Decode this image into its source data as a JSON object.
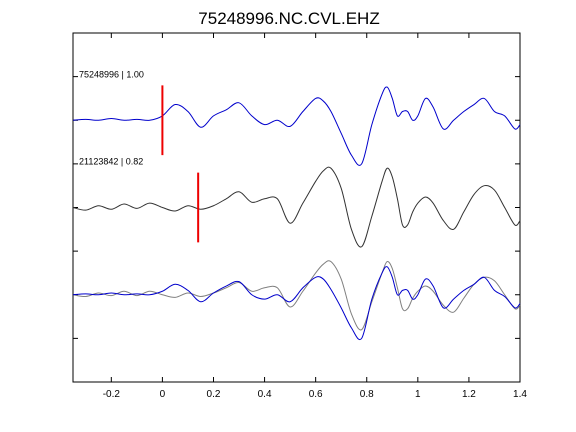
{
  "chart_data": {
    "type": "line",
    "title": "75248996.NC.CVL.EHZ",
    "xlabel": "",
    "ylabel": "",
    "xlim": [
      -0.35,
      1.4
    ],
    "x_ticks": [
      -0.2,
      0,
      0.2,
      0.4,
      0.6,
      0.8,
      1,
      1.2,
      1.4
    ],
    "x_tick_labels": [
      "-0.2",
      "0",
      "0.2",
      "0.4",
      "0.6",
      "0.8",
      "1",
      "1.2",
      "1.4"
    ],
    "y_ticks": [
      0.5,
      1,
      1.5,
      2,
      2.5,
      3,
      3.5
    ],
    "ylim": [
      0,
      4
    ],
    "grid": false,
    "colors": {
      "blue": "#0000cc",
      "dark": "#333333",
      "gray": "#808080",
      "pick": "#ee0000"
    },
    "traces": [
      {
        "label": "75248996 | 1.00",
        "baseline": 3,
        "color": "#0000cc",
        "pick_time": 0.0,
        "x": [
          -0.35,
          -0.3,
          -0.25,
          -0.2,
          -0.15,
          -0.1,
          -0.05,
          0.0,
          0.05,
          0.1,
          0.15,
          0.2,
          0.25,
          0.3,
          0.35,
          0.4,
          0.45,
          0.5,
          0.55,
          0.6,
          0.63,
          0.66,
          0.7,
          0.74,
          0.78,
          0.82,
          0.86,
          0.88,
          0.9,
          0.92,
          0.94,
          0.96,
          0.98,
          1.0,
          1.03,
          1.06,
          1.1,
          1.14,
          1.18,
          1.22,
          1.26,
          1.3,
          1.34,
          1.38,
          1.4
        ],
        "y": [
          3.0,
          3.01,
          3.0,
          3.02,
          3.0,
          3.01,
          3.0,
          3.05,
          3.18,
          3.1,
          2.92,
          3.05,
          3.12,
          3.2,
          3.05,
          2.95,
          3.0,
          2.93,
          3.1,
          3.25,
          3.22,
          3.1,
          2.85,
          2.6,
          2.5,
          2.95,
          3.3,
          3.38,
          3.25,
          3.05,
          3.1,
          3.1,
          3.0,
          3.05,
          3.25,
          3.15,
          2.9,
          3.0,
          3.1,
          3.18,
          3.25,
          3.1,
          3.05,
          2.9,
          2.95
        ]
      },
      {
        "label": "21123842 | 0.82",
        "baseline": 2,
        "color": "#333333",
        "pick_time": 0.14,
        "x": [
          -0.35,
          -0.3,
          -0.25,
          -0.2,
          -0.15,
          -0.1,
          -0.05,
          0.0,
          0.05,
          0.1,
          0.15,
          0.2,
          0.25,
          0.3,
          0.35,
          0.4,
          0.45,
          0.5,
          0.55,
          0.6,
          0.63,
          0.66,
          0.7,
          0.74,
          0.78,
          0.82,
          0.86,
          0.88,
          0.9,
          0.92,
          0.94,
          0.96,
          0.98,
          1.0,
          1.03,
          1.06,
          1.1,
          1.14,
          1.18,
          1.22,
          1.26,
          1.3,
          1.34,
          1.38,
          1.4
        ],
        "y": [
          2.0,
          1.97,
          2.02,
          1.98,
          2.04,
          1.99,
          2.05,
          2.0,
          1.96,
          2.02,
          1.98,
          2.02,
          2.1,
          2.18,
          2.06,
          2.1,
          2.1,
          1.82,
          2.05,
          2.3,
          2.42,
          2.45,
          2.22,
          1.75,
          1.55,
          1.9,
          2.3,
          2.45,
          2.35,
          2.1,
          1.8,
          1.8,
          1.95,
          2.05,
          2.12,
          2.05,
          1.85,
          1.75,
          1.95,
          2.15,
          2.25,
          2.2,
          2.0,
          1.8,
          1.85
        ]
      },
      {
        "label": "",
        "baseline": 1,
        "color": "#0000cc",
        "x": [
          -0.35,
          -0.3,
          -0.25,
          -0.2,
          -0.15,
          -0.1,
          -0.05,
          0.0,
          0.05,
          0.1,
          0.15,
          0.2,
          0.25,
          0.3,
          0.35,
          0.4,
          0.45,
          0.5,
          0.55,
          0.6,
          0.63,
          0.66,
          0.7,
          0.74,
          0.78,
          0.82,
          0.86,
          0.88,
          0.9,
          0.92,
          0.94,
          0.96,
          0.98,
          1.0,
          1.03,
          1.06,
          1.1,
          1.14,
          1.18,
          1.22,
          1.26,
          1.3,
          1.34,
          1.38,
          1.4
        ],
        "y": [
          1.0,
          1.01,
          1.0,
          1.02,
          1.0,
          1.01,
          1.0,
          1.04,
          1.12,
          1.05,
          0.92,
          1.02,
          1.1,
          1.15,
          1.0,
          0.95,
          1.0,
          0.92,
          1.08,
          1.2,
          1.18,
          1.06,
          0.85,
          0.62,
          0.5,
          0.95,
          1.25,
          1.32,
          1.2,
          1.0,
          1.05,
          1.05,
          0.95,
          1.0,
          1.18,
          1.1,
          0.85,
          0.95,
          1.05,
          1.12,
          1.2,
          1.05,
          0.98,
          0.85,
          0.9
        ]
      },
      {
        "label": "",
        "baseline": 1,
        "color": "#808080",
        "x": [
          -0.35,
          -0.3,
          -0.25,
          -0.2,
          -0.15,
          -0.1,
          -0.05,
          0.0,
          0.05,
          0.1,
          0.15,
          0.2,
          0.25,
          0.3,
          0.35,
          0.4,
          0.45,
          0.5,
          0.55,
          0.6,
          0.63,
          0.66,
          0.7,
          0.74,
          0.78,
          0.82,
          0.86,
          0.88,
          0.9,
          0.92,
          0.94,
          0.96,
          0.98,
          1.0,
          1.03,
          1.06,
          1.1,
          1.14,
          1.18,
          1.22,
          1.26,
          1.3,
          1.34,
          1.38,
          1.4
        ],
        "y": [
          1.0,
          0.98,
          1.02,
          0.99,
          1.04,
          0.99,
          1.04,
          1.0,
          0.97,
          1.02,
          0.98,
          1.02,
          1.08,
          1.14,
          1.04,
          1.08,
          1.08,
          0.86,
          1.04,
          1.25,
          1.35,
          1.38,
          1.18,
          0.78,
          0.6,
          0.92,
          1.25,
          1.38,
          1.3,
          1.08,
          0.84,
          0.84,
          0.96,
          1.04,
          1.1,
          1.04,
          0.88,
          0.8,
          0.96,
          1.12,
          1.2,
          1.16,
          1.0,
          0.84,
          0.88
        ]
      }
    ]
  }
}
